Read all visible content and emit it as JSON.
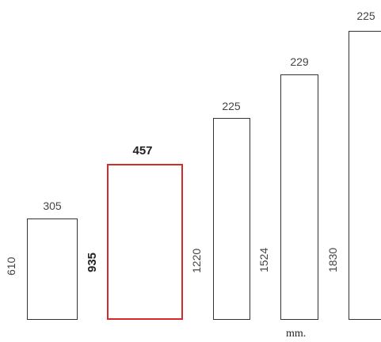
{
  "panels": [
    {
      "width": "305",
      "height": "610",
      "highlight": false
    },
    {
      "width": "457",
      "height": "935",
      "highlight": true
    },
    {
      "width": "225",
      "height": "1220",
      "highlight": false
    },
    {
      "width": "229",
      "height": "1524",
      "highlight": false
    },
    {
      "width": "225",
      "height": "1830",
      "highlight": false
    }
  ],
  "unit_label": "mm.",
  "colors": {
    "highlight": "#d42a2a",
    "outline": "#333333"
  }
}
